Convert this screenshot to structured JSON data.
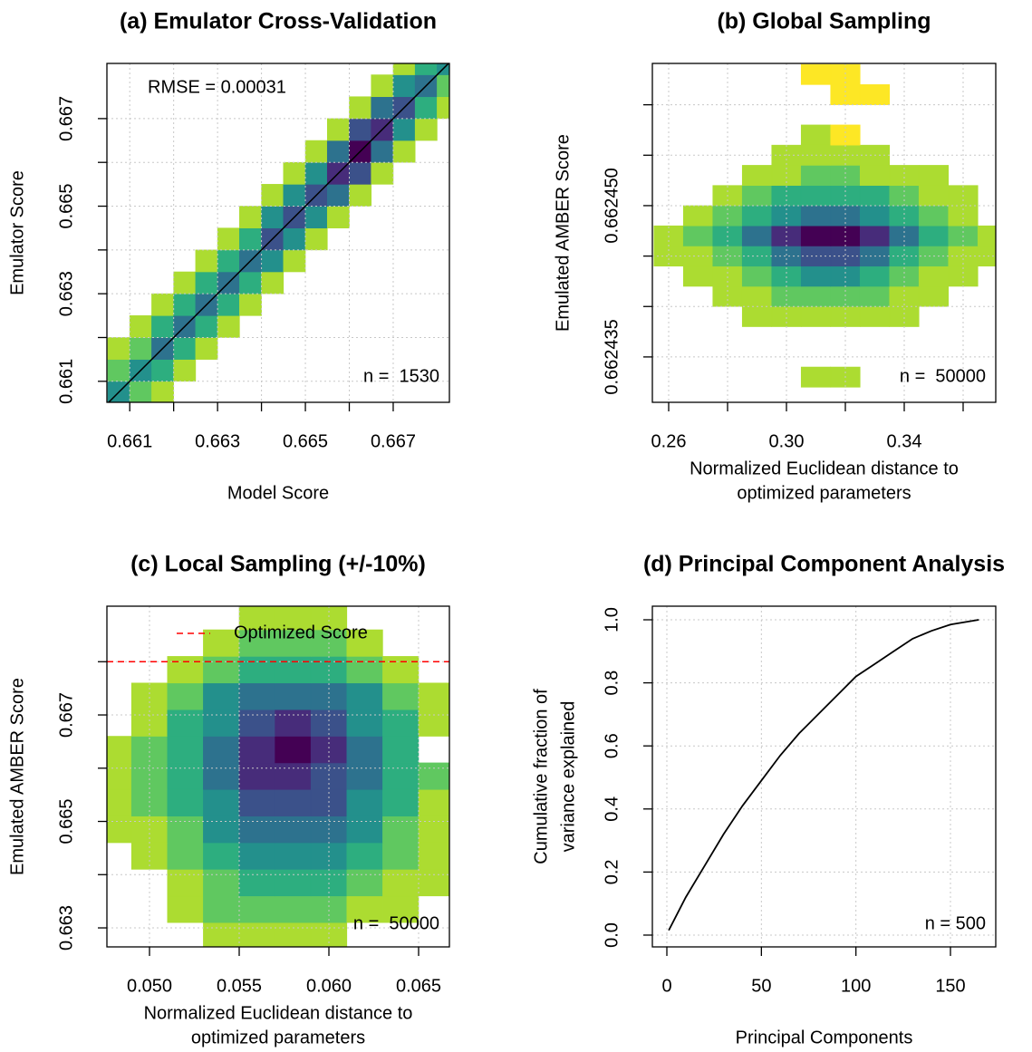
{
  "chart_data": [
    {
      "type": "heatmap",
      "title": "(a) Emulator Cross-Validation",
      "xlabel": "Model Score",
      "ylabel": "Emulator Score",
      "xlim": [
        0.66048,
        0.66828
      ],
      "ylim": [
        0.66052,
        0.66826
      ],
      "xticks": [
        {
          "value": 0.661,
          "label": "0.661"
        },
        {
          "value": 0.662,
          "label": null
        },
        {
          "value": 0.663,
          "label": "0.663"
        },
        {
          "value": 0.664,
          "label": null
        },
        {
          "value": 0.665,
          "label": "0.665"
        },
        {
          "value": 0.666,
          "label": null
        },
        {
          "value": 0.667,
          "label": "0.667"
        }
      ],
      "yticks": [
        {
          "value": 0.661,
          "label": "0.661"
        },
        {
          "value": 0.662,
          "label": null
        },
        {
          "value": 0.663,
          "label": "0.663"
        },
        {
          "value": 0.664,
          "label": null
        },
        {
          "value": 0.665,
          "label": "0.665"
        },
        {
          "value": 0.666,
          "label": null
        },
        {
          "value": 0.667,
          "label": "0.667"
        }
      ],
      "grid": true,
      "identity_line": true,
      "annotations": [
        "RMSE = 0.00031",
        "n =  1530"
      ],
      "colormap": [
        "#fde725",
        "#b5de2b",
        "#6ece58",
        "#35b779",
        "#1f9e89",
        "#26828e",
        "#31688e",
        "#3e4989",
        "#482878",
        "#440154"
      ],
      "zlim": [
        1,
        9
      ],
      "x_bins": [
        0.6605,
        0.661,
        0.6615,
        0.662,
        0.6625,
        0.663,
        0.6635,
        0.664,
        0.6645,
        0.665,
        0.6655,
        0.666,
        0.6665,
        0.667,
        0.6675,
        0.668,
        0.6685
      ],
      "y_bins": [
        0.6605,
        0.661,
        0.6615,
        0.662,
        0.6625,
        0.663,
        0.6635,
        0.664,
        0.6645,
        0.665,
        0.6655,
        0.666,
        0.6665,
        0.667,
        0.6675,
        0.668,
        0.6685
      ],
      "z": [
        [
          5,
          3,
          2,
          null,
          null,
          null,
          null,
          null,
          null,
          null,
          null,
          null,
          null,
          null,
          null,
          null
        ],
        [
          3,
          5,
          4,
          2,
          null,
          null,
          null,
          null,
          null,
          null,
          null,
          null,
          null,
          null,
          null,
          null
        ],
        [
          2,
          3,
          6,
          4,
          2,
          null,
          null,
          null,
          null,
          null,
          null,
          null,
          null,
          null,
          null,
          null
        ],
        [
          null,
          2,
          4,
          6,
          4,
          2,
          null,
          null,
          null,
          null,
          null,
          null,
          null,
          null,
          null,
          null
        ],
        [
          null,
          null,
          2,
          4,
          6,
          4,
          2,
          null,
          null,
          null,
          null,
          null,
          null,
          null,
          null,
          null
        ],
        [
          null,
          null,
          null,
          2,
          4,
          6,
          4,
          2,
          null,
          null,
          null,
          null,
          null,
          null,
          null,
          null
        ],
        [
          null,
          null,
          null,
          null,
          2,
          4,
          6,
          5,
          2,
          null,
          null,
          null,
          null,
          null,
          null,
          null
        ],
        [
          null,
          null,
          null,
          null,
          null,
          2,
          4,
          7,
          5,
          2,
          null,
          null,
          null,
          null,
          null,
          null
        ],
        [
          null,
          null,
          null,
          null,
          null,
          null,
          2,
          5,
          7,
          5,
          2,
          null,
          null,
          null,
          null,
          null
        ],
        [
          null,
          null,
          null,
          null,
          null,
          null,
          null,
          2,
          5,
          7,
          6,
          2,
          null,
          null,
          null,
          null
        ],
        [
          null,
          null,
          null,
          null,
          null,
          null,
          null,
          null,
          2,
          5,
          8,
          7,
          2,
          null,
          null,
          null
        ],
        [
          null,
          null,
          null,
          null,
          null,
          null,
          null,
          null,
          null,
          2,
          6,
          9,
          6,
          2,
          null,
          null
        ],
        [
          null,
          null,
          null,
          null,
          null,
          null,
          null,
          null,
          null,
          null,
          2,
          7,
          8,
          5,
          2,
          null
        ],
        [
          null,
          null,
          null,
          null,
          null,
          null,
          null,
          null,
          null,
          null,
          null,
          2,
          6,
          7,
          4,
          2
        ],
        [
          null,
          null,
          null,
          null,
          null,
          null,
          null,
          null,
          null,
          null,
          null,
          null,
          2,
          5,
          6,
          3
        ],
        [
          null,
          null,
          null,
          null,
          null,
          null,
          null,
          null,
          null,
          null,
          null,
          null,
          null,
          2,
          4,
          5
        ]
      ]
    },
    {
      "type": "heatmap",
      "title": "(b) Global Sampling",
      "xlabel": [
        "Normalized Euclidean distance to",
        "optimized parameters"
      ],
      "ylabel": "Emulated AMBER Score",
      "xlim": [
        0.25446,
        0.37108
      ],
      "ylim": [
        0.6624305,
        0.6624641
      ],
      "xticks": [
        0.26,
        {
          "value": 0.28,
          "label": null
        },
        {
          "value": 0.3,
          "label": "0.30"
        },
        {
          "value": 0.32,
          "label": null
        },
        0.34,
        {
          "value": 0.36,
          "label": null
        }
      ],
      "yticks": [
        {
          "value": 0.662435,
          "label": "0.662435"
        },
        {
          "value": 0.66244,
          "label": null
        },
        {
          "value": 0.662445,
          "label": null
        },
        {
          "value": 0.66245,
          "label": "0.662450"
        },
        {
          "value": 0.662455,
          "label": null
        },
        {
          "value": 0.66246,
          "label": null
        }
      ],
      "grid": true,
      "annotations": [
        "n =  50000"
      ],
      "colormap": [
        "#fde725",
        "#b5de2b",
        "#6ece58",
        "#35b779",
        "#1f9e89",
        "#26828e",
        "#31688e",
        "#3e4989",
        "#482878",
        "#440154"
      ],
      "zlim": [
        1,
        9
      ],
      "x_bins": [
        0.255,
        0.265,
        0.275,
        0.285,
        0.295,
        0.305,
        0.315,
        0.325,
        0.335,
        0.345,
        0.355,
        0.365,
        0.375
      ],
      "y_bins": [
        0.66243,
        0.662432,
        0.662434,
        0.662436,
        0.662438,
        0.66244,
        0.662442,
        0.662444,
        0.662446,
        0.662448,
        0.66245,
        0.662452,
        0.662454,
        0.662456,
        0.662458,
        0.66246,
        0.662462,
        0.662464
      ],
      "z": [
        [
          null,
          null,
          null,
          null,
          null,
          null,
          null,
          null,
          null,
          null,
          null,
          null
        ],
        [
          null,
          null,
          null,
          null,
          null,
          2,
          2,
          null,
          null,
          null,
          null,
          null
        ],
        [
          null,
          null,
          null,
          null,
          null,
          null,
          null,
          null,
          null,
          null,
          null,
          null
        ],
        [
          null,
          null,
          null,
          null,
          null,
          null,
          null,
          null,
          null,
          null,
          null,
          null
        ],
        [
          null,
          null,
          null,
          2,
          2,
          2,
          2,
          2,
          2,
          null,
          null,
          null
        ],
        [
          null,
          null,
          2,
          2,
          3,
          3,
          3,
          3,
          2,
          2,
          null,
          null
        ],
        [
          null,
          2,
          2,
          3,
          4,
          5,
          5,
          4,
          3,
          2,
          2,
          null
        ],
        [
          2,
          2,
          3,
          4,
          6,
          7,
          7,
          6,
          4,
          3,
          2,
          2
        ],
        [
          2,
          3,
          4,
          6,
          8,
          9,
          9,
          8,
          6,
          4,
          3,
          2
        ],
        [
          null,
          2,
          3,
          4,
          5,
          6,
          6,
          5,
          4,
          3,
          2,
          null
        ],
        [
          null,
          null,
          2,
          3,
          4,
          4,
          4,
          4,
          3,
          2,
          2,
          null
        ],
        [
          null,
          null,
          null,
          2,
          2,
          3,
          3,
          2,
          2,
          2,
          null,
          null
        ],
        [
          null,
          null,
          null,
          null,
          2,
          2,
          2,
          2,
          null,
          null,
          null,
          null
        ],
        [
          null,
          null,
          null,
          null,
          null,
          2,
          1,
          null,
          null,
          null,
          null,
          null
        ],
        [
          null,
          null,
          null,
          null,
          null,
          null,
          null,
          null,
          null,
          null,
          null,
          null
        ],
        [
          null,
          null,
          null,
          null,
          null,
          null,
          1,
          1,
          null,
          null,
          null,
          null
        ],
        [
          null,
          null,
          null,
          null,
          null,
          1,
          1,
          null,
          null,
          null,
          null,
          null
        ]
      ]
    },
    {
      "type": "heatmap",
      "title": "(c) Local Sampling (+/-10%)",
      "xlabel": [
        "Normalized Euclidean distance to",
        "optimized parameters"
      ],
      "ylabel": "Emulated AMBER Score",
      "xlim": [
        0.047626,
        0.066717
      ],
      "ylim": [
        0.662643,
        0.669043
      ],
      "xticks": [
        {
          "value": 0.05,
          "label": "0.050"
        },
        0.055,
        {
          "value": 0.06,
          "label": "0.060"
        },
        0.065
      ],
      "yticks": [
        {
          "value": 0.663,
          "label": "0.663"
        },
        {
          "value": 0.664,
          "label": null
        },
        {
          "value": 0.665,
          "label": "0.665"
        },
        {
          "value": 0.666,
          "label": null
        },
        {
          "value": 0.667,
          "label": "0.667"
        },
        {
          "value": 0.668,
          "label": null
        }
      ],
      "grid": true,
      "reference_line": {
        "name": "Optimized Score",
        "value": 0.668,
        "color": "#ff0000"
      },
      "annotations": [
        "n =  50000"
      ],
      "colormap": [
        "#fde725",
        "#b5de2b",
        "#6ece58",
        "#35b779",
        "#1f9e89",
        "#26828e",
        "#31688e",
        "#3e4989",
        "#482878",
        "#440154"
      ],
      "zlim": [
        1,
        9
      ],
      "x_bins": [
        0.047,
        0.049,
        0.051,
        0.053,
        0.055,
        0.057,
        0.059,
        0.061,
        0.063,
        0.065,
        0.067
      ],
      "y_bins": [
        0.6626,
        0.6631,
        0.6636,
        0.6641,
        0.6646,
        0.6651,
        0.6656,
        0.6661,
        0.6666,
        0.6671,
        0.6676,
        0.6681,
        0.6686,
        0.6691
      ],
      "z": [
        [
          null,
          null,
          null,
          2,
          2,
          2,
          2,
          null,
          null,
          null
        ],
        [
          null,
          null,
          2,
          3,
          3,
          3,
          3,
          2,
          2,
          null
        ],
        [
          null,
          null,
          2,
          3,
          4,
          4,
          4,
          3,
          2,
          2
        ],
        [
          null,
          2,
          3,
          4,
          5,
          5,
          5,
          4,
          3,
          2
        ],
        [
          2,
          2,
          3,
          5,
          6,
          6,
          6,
          5,
          3,
          2
        ],
        [
          2,
          3,
          4,
          5,
          7,
          7,
          7,
          5,
          4,
          2
        ],
        [
          2,
          3,
          4,
          6,
          8,
          8,
          7,
          6,
          4,
          3
        ],
        [
          2,
          3,
          4,
          6,
          8,
          9,
          8,
          6,
          4,
          null
        ],
        [
          null,
          2,
          4,
          5,
          7,
          8,
          7,
          5,
          4,
          2
        ],
        [
          null,
          2,
          3,
          5,
          6,
          6,
          6,
          5,
          3,
          2
        ],
        [
          null,
          null,
          2,
          3,
          4,
          4,
          4,
          3,
          2,
          null
        ],
        [
          null,
          null,
          null,
          2,
          3,
          3,
          3,
          2,
          null,
          null
        ],
        [
          null,
          null,
          null,
          null,
          2,
          2,
          2,
          null,
          null,
          null
        ]
      ]
    },
    {
      "type": "line",
      "title": "(d) Principal Component Analysis",
      "xlabel": "Principal Components",
      "ylabel": [
        "Cumulative fraction of",
        "variance explained"
      ],
      "xlim": [
        -7.67,
        173.96
      ],
      "ylim": [
        -0.0374,
        1.0431
      ],
      "xticks": [
        0,
        50,
        100,
        150
      ],
      "yticks": [
        {
          "value": 0,
          "label": "0.0"
        },
        0.2,
        0.4,
        0.6,
        0.8,
        {
          "value": 1,
          "label": "1.0"
        }
      ],
      "grid": true,
      "annotations": [
        "n = 500"
      ],
      "x": [
        1,
        10,
        20,
        30,
        40,
        50,
        60,
        70,
        80,
        90,
        100,
        110,
        120,
        130,
        140,
        150,
        165
      ],
      "values": [
        0.015,
        0.12,
        0.22,
        0.32,
        0.41,
        0.49,
        0.57,
        0.64,
        0.7,
        0.76,
        0.82,
        0.86,
        0.9,
        0.94,
        0.965,
        0.985,
        1.0
      ],
      "color": "#000000"
    }
  ]
}
